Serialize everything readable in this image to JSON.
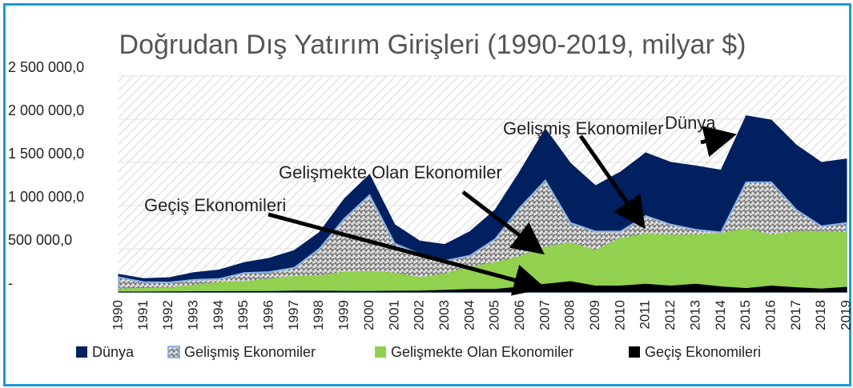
{
  "chart_data": {
    "type": "area",
    "title": "Doğrudan Dış Yatırım Girişleri (1990-2019, milyar $)",
    "categories": [
      "1990",
      "1991",
      "1992",
      "1993",
      "1994",
      "1995",
      "1996",
      "1997",
      "1998",
      "1999",
      "2000",
      "2001",
      "2002",
      "2003",
      "2004",
      "2005",
      "2006",
      "2007",
      "2008",
      "2009",
      "2010",
      "2011",
      "2012",
      "2013",
      "2014",
      "2015",
      "2016",
      "2017",
      "2018",
      "2019"
    ],
    "series": [
      {
        "name": "Dünya",
        "color": "#002060",
        "values": [
          205000,
          155000,
          165000,
          225000,
          255000,
          340000,
          390000,
          480000,
          690000,
          1080000,
          1360000,
          780000,
          590000,
          550000,
          700000,
          950000,
          1400000,
          1890000,
          1490000,
          1230000,
          1390000,
          1610000,
          1500000,
          1460000,
          1410000,
          2040000,
          1990000,
          1700000,
          1500000,
          1540000
        ]
      },
      {
        "name": "Gelişmiş Ekonomiler",
        "color": "#8db4e2",
        "values": [
          170000,
          115000,
          110000,
          140000,
          150000,
          220000,
          230000,
          280000,
          500000,
          850000,
          1120000,
          560000,
          440000,
          360000,
          420000,
          610000,
          980000,
          1290000,
          800000,
          700000,
          700000,
          880000,
          780000,
          720000,
          690000,
          1270000,
          1270000,
          950000,
          760000,
          800000
        ]
      },
      {
        "name": "Gelişmekte Olan Ekonomiler",
        "color": "#92d050",
        "values": [
          35000,
          40000,
          50000,
          80000,
          110000,
          120000,
          150000,
          180000,
          190000,
          230000,
          240000,
          220000,
          165000,
          210000,
          290000,
          340000,
          410000,
          520000,
          570000,
          480000,
          620000,
          670000,
          660000,
          660000,
          680000,
          730000,
          660000,
          700000,
          700000,
          690000
        ]
      },
      {
        "name": "Geçiş Ekonomileri",
        "color": "#000000",
        "values": [
          0,
          0,
          2000,
          4000,
          5000,
          6000,
          6000,
          10000,
          10000,
          8000,
          7000,
          9000,
          11000,
          20000,
          30000,
          30000,
          58000,
          90000,
          120000,
          70000,
          70000,
          90000,
          70000,
          90000,
          60000,
          40000,
          70000,
          50000,
          35000,
          55000
        ]
      }
    ],
    "ylim": [
      0,
      2500000
    ],
    "yticks": [
      {
        "value": 0,
        "label": "-"
      },
      {
        "value": 500000,
        "label": "500 000,0"
      },
      {
        "value": 1000000,
        "label": "1 000 000,0"
      },
      {
        "value": 1500000,
        "label": "1 500 000,0"
      },
      {
        "value": 2000000,
        "label": "2 000 000,0"
      },
      {
        "value": 2500000,
        "label": "2 500 000,0"
      }
    ],
    "grid": true,
    "legend": "bottom",
    "annotations": [
      "Dünya",
      "Gelişmiş Ekonomiler",
      "Gelişmekte Olan Ekonomiler",
      "Geçiş Ekonomileri"
    ]
  }
}
